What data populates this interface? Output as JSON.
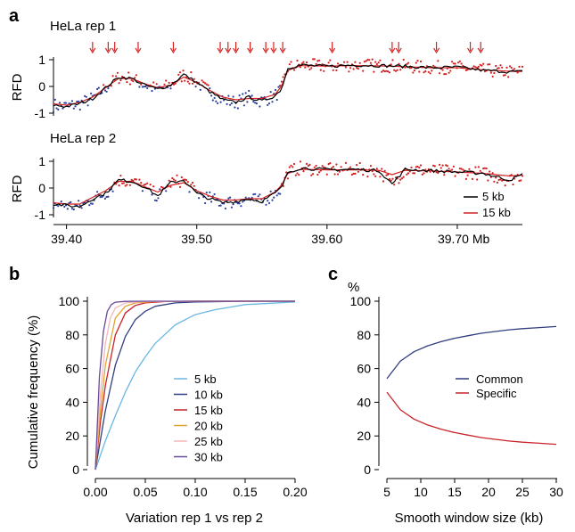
{
  "panels": {
    "a": "a",
    "b": "b",
    "c": "c"
  },
  "colors": {
    "black_line": "#000000",
    "red_line": "#d42020",
    "red_points": "#d42020",
    "blue_points": "#2b3f9e",
    "arrow": "#d42020"
  },
  "chart_data": [
    {
      "type": "scatter",
      "title": "HeLa rep 1",
      "ylabel": "RFD",
      "xlabel": "",
      "xlim": [
        39.39,
        39.75
      ],
      "ylim": [
        -1.1,
        1.1
      ],
      "yticks": [
        -1,
        0,
        1
      ],
      "origins_mb": [
        39.42,
        39.432,
        39.437,
        39.455,
        39.482,
        39.518,
        39.524,
        39.53,
        39.541,
        39.553,
        39.559,
        39.566,
        39.604,
        39.65,
        39.655,
        39.684,
        39.71,
        39.718
      ],
      "series": [
        {
          "name": "5 kb",
          "color": "#000000",
          "x": [
            39.39,
            39.4,
            39.41,
            39.42,
            39.43,
            39.44,
            39.45,
            39.46,
            39.47,
            39.48,
            39.49,
            39.5,
            39.51,
            39.52,
            39.53,
            39.54,
            39.55,
            39.56,
            39.565,
            39.57,
            39.58,
            39.6,
            39.62,
            39.64,
            39.66,
            39.68,
            39.7,
            39.72,
            39.74,
            39.75
          ],
          "values": [
            -0.7,
            -0.75,
            -0.65,
            -0.45,
            -0.05,
            0.35,
            0.3,
            0.05,
            -0.1,
            0.05,
            0.45,
            0.15,
            -0.2,
            -0.5,
            -0.6,
            -0.4,
            -0.55,
            -0.35,
            -0.1,
            0.7,
            0.8,
            0.75,
            0.8,
            0.78,
            0.75,
            0.7,
            0.72,
            0.6,
            0.55,
            0.55
          ]
        },
        {
          "name": "15 kb",
          "color": "#d42020",
          "x": [
            39.39,
            39.4,
            39.41,
            39.42,
            39.43,
            39.44,
            39.45,
            39.46,
            39.47,
            39.48,
            39.49,
            39.5,
            39.51,
            39.52,
            39.53,
            39.54,
            39.55,
            39.56,
            39.565,
            39.57,
            39.58,
            39.6,
            39.62,
            39.64,
            39.66,
            39.68,
            39.7,
            39.72,
            39.74,
            39.75
          ],
          "values": [
            -0.65,
            -0.7,
            -0.6,
            -0.4,
            -0.05,
            0.3,
            0.3,
            0.1,
            -0.05,
            0.05,
            0.35,
            0.15,
            -0.15,
            -0.4,
            -0.5,
            -0.45,
            -0.45,
            -0.3,
            0.0,
            0.6,
            0.78,
            0.76,
            0.78,
            0.77,
            0.74,
            0.7,
            0.7,
            0.62,
            0.57,
            0.56
          ]
        }
      ]
    },
    {
      "type": "scatter",
      "title": "HeLa rep 2",
      "ylabel": "RFD",
      "xlabel": "Mb",
      "xlim": [
        39.39,
        39.75
      ],
      "ylim": [
        -1.1,
        1.1
      ],
      "yticks": [
        -1,
        0,
        1
      ],
      "xticks": [
        "39.40",
        "39.50",
        "39.60",
        "39.70 Mb"
      ],
      "xtick_values": [
        39.4,
        39.5,
        39.6,
        39.7
      ],
      "legend": [
        "5 kb",
        "15 kb"
      ],
      "series": [
        {
          "name": "5 kb",
          "color": "#000000",
          "x": [
            39.39,
            39.4,
            39.41,
            39.42,
            39.43,
            39.44,
            39.45,
            39.46,
            39.47,
            39.48,
            39.49,
            39.5,
            39.51,
            39.52,
            39.53,
            39.54,
            39.55,
            39.56,
            39.565,
            39.57,
            39.58,
            39.6,
            39.62,
            39.64,
            39.65,
            39.66,
            39.68,
            39.7,
            39.72,
            39.74,
            39.75
          ],
          "values": [
            -0.6,
            -0.65,
            -0.7,
            -0.4,
            -0.2,
            0.3,
            0.25,
            0.05,
            -0.3,
            0.2,
            0.3,
            -0.2,
            -0.4,
            -0.55,
            -0.5,
            -0.4,
            -0.5,
            -0.2,
            0.0,
            0.6,
            0.75,
            0.68,
            0.7,
            0.65,
            0.15,
            0.7,
            0.65,
            0.6,
            0.55,
            0.3,
            0.5
          ]
        },
        {
          "name": "15 kb",
          "color": "#d42020",
          "x": [
            39.39,
            39.4,
            39.41,
            39.42,
            39.43,
            39.44,
            39.45,
            39.46,
            39.47,
            39.48,
            39.49,
            39.5,
            39.51,
            39.52,
            39.53,
            39.54,
            39.55,
            39.56,
            39.565,
            39.57,
            39.58,
            39.6,
            39.62,
            39.64,
            39.65,
            39.66,
            39.68,
            39.7,
            39.72,
            39.74,
            39.75
          ],
          "values": [
            -0.55,
            -0.6,
            -0.6,
            -0.35,
            -0.1,
            0.25,
            0.25,
            0.05,
            -0.15,
            0.1,
            0.2,
            -0.1,
            -0.3,
            -0.45,
            -0.45,
            -0.4,
            -0.4,
            -0.15,
            0.1,
            0.55,
            0.7,
            0.68,
            0.68,
            0.66,
            0.5,
            0.66,
            0.64,
            0.6,
            0.55,
            0.45,
            0.48
          ]
        }
      ]
    },
    {
      "type": "line",
      "title": "",
      "ylabel": "Cumulative frequency (%)",
      "xlabel": "Variation rep 1 vs rep 2",
      "xlim": [
        0,
        0.2
      ],
      "ylim": [
        0,
        100
      ],
      "xticks": [
        "0.00",
        "0.05",
        "0.10",
        "0.15",
        "0.20"
      ],
      "xtick_values": [
        0,
        0.05,
        0.1,
        0.15,
        0.2
      ],
      "yticks": [
        0,
        20,
        40,
        60,
        80,
        100
      ],
      "legend": [
        "5 kb",
        "10 kb",
        "15 kb",
        "20 kb",
        "25 kb",
        "30 kb"
      ],
      "series": [
        {
          "name": "5 kb",
          "color": "#6ab7e3",
          "x": [
            0,
            0.01,
            0.02,
            0.03,
            0.04,
            0.05,
            0.06,
            0.08,
            0.1,
            0.12,
            0.15,
            0.2
          ],
          "values": [
            0,
            17,
            32,
            46,
            58,
            67,
            75,
            86,
            92,
            95,
            98,
            99.5
          ]
        },
        {
          "name": "10 kb",
          "color": "#2f3e80",
          "x": [
            0,
            0.01,
            0.02,
            0.03,
            0.04,
            0.05,
            0.06,
            0.08,
            0.1,
            0.15,
            0.2
          ],
          "values": [
            0,
            35,
            62,
            79,
            89,
            94,
            97,
            99,
            99.5,
            100,
            100
          ]
        },
        {
          "name": "15 kb",
          "color": "#c8242a",
          "x": [
            0,
            0.005,
            0.01,
            0.02,
            0.03,
            0.04,
            0.05,
            0.07,
            0.1,
            0.2
          ],
          "values": [
            0,
            28,
            50,
            80,
            93,
            97.5,
            99,
            99.8,
            100,
            100
          ]
        },
        {
          "name": "20 kb",
          "color": "#e0a430",
          "x": [
            0,
            0.005,
            0.01,
            0.02,
            0.03,
            0.04,
            0.06,
            0.1,
            0.2
          ],
          "values": [
            0,
            35,
            62,
            90,
            97,
            99,
            99.8,
            100,
            100
          ]
        },
        {
          "name": "25 kb",
          "color": "#f2b8b8",
          "x": [
            0,
            0.005,
            0.01,
            0.015,
            0.02,
            0.03,
            0.05,
            0.1,
            0.2
          ],
          "values": [
            0,
            45,
            75,
            90,
            96,
            99,
            99.8,
            100,
            100
          ]
        },
        {
          "name": "30 kb",
          "color": "#6a4a9a",
          "x": [
            0,
            0.004,
            0.008,
            0.012,
            0.016,
            0.02,
            0.03,
            0.05,
            0.1,
            0.2
          ],
          "values": [
            0,
            55,
            82,
            94,
            98,
            99.4,
            99.9,
            100,
            100,
            100
          ]
        }
      ]
    },
    {
      "type": "line",
      "title": "%",
      "ylabel": "",
      "xlabel": "Smooth window size (kb)",
      "xlim": [
        4,
        30
      ],
      "ylim": [
        0,
        100
      ],
      "xticks": [
        "5",
        "10",
        "15",
        "20",
        "25",
        "30"
      ],
      "xtick_values": [
        5,
        10,
        15,
        20,
        25,
        30
      ],
      "yticks": [
        0,
        20,
        40,
        60,
        80,
        100
      ],
      "legend": [
        "Common",
        "Specific"
      ],
      "series": [
        {
          "name": "Common",
          "color": "#2f3e80",
          "x": [
            5,
            7,
            9,
            11,
            13,
            15,
            17,
            19,
            21,
            23,
            25,
            27,
            30
          ],
          "values": [
            54,
            64.5,
            70,
            73.5,
            76,
            78,
            79.5,
            81,
            82,
            83,
            83.7,
            84.2,
            85
          ]
        },
        {
          "name": "Specific",
          "color": "#c8242a",
          "x": [
            5,
            7,
            9,
            11,
            13,
            15,
            17,
            19,
            21,
            23,
            25,
            27,
            30
          ],
          "values": [
            46,
            35.5,
            30,
            26.5,
            24,
            22,
            20.5,
            19,
            18,
            17,
            16.3,
            15.8,
            15
          ]
        }
      ]
    }
  ]
}
